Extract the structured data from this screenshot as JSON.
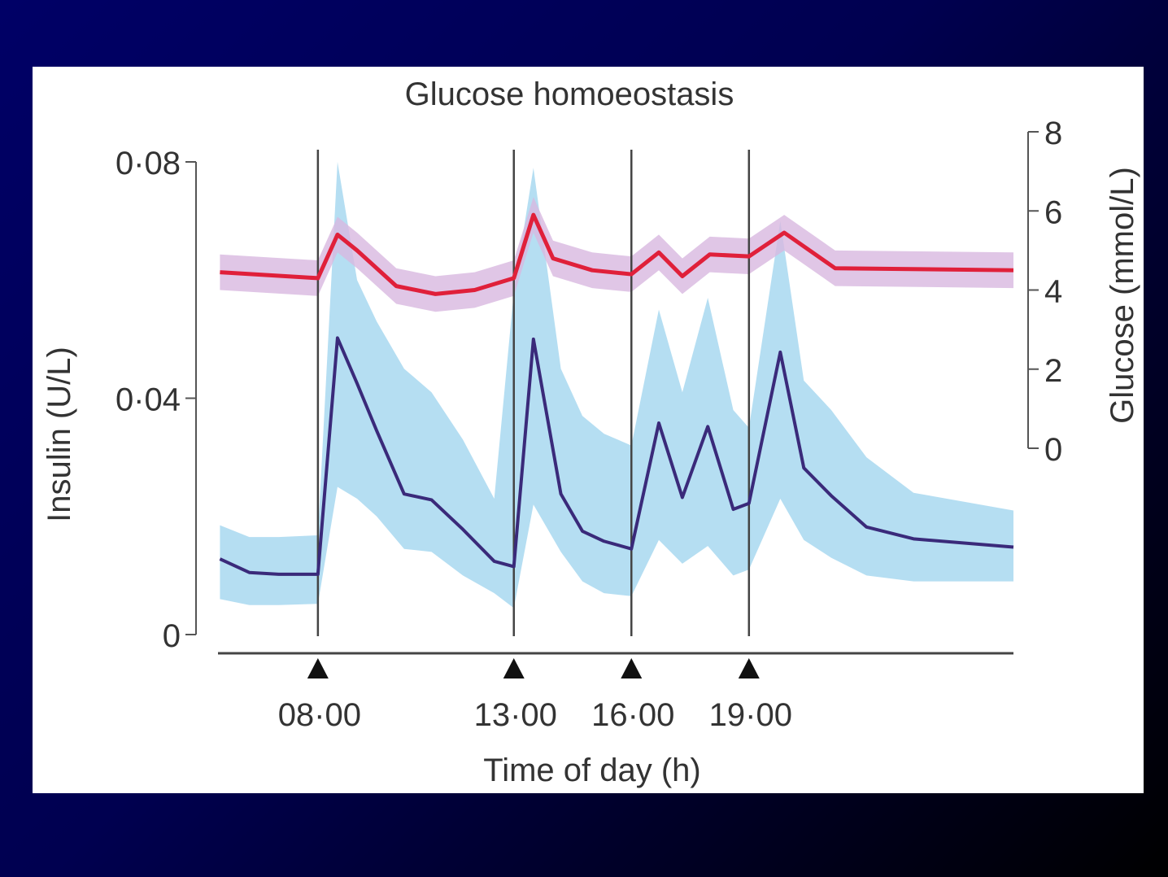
{
  "chart_data": {
    "type": "line",
    "title": "Glucose homoeostasis",
    "xlabel": "Time of day (h)",
    "ylabel_left": "Insulin (U/L)",
    "ylabel_right": "Glucose (mmol/L)",
    "x_ticks": [
      "08·00",
      "13·00",
      "16·00",
      "19·00"
    ],
    "x_tick_hours": [
      8,
      13,
      16,
      19
    ],
    "xlim": [
      5.45,
      25.75
    ],
    "ylim_left": [
      0,
      0.08
    ],
    "y_ticks_left": [
      {
        "value": 0,
        "label": "0"
      },
      {
        "value": 0.04,
        "label": "0·04"
      },
      {
        "value": 0.08,
        "label": "0·08"
      }
    ],
    "ylim_right": [
      0,
      8
    ],
    "y_ticks_right": [
      {
        "value": 0,
        "label": "0"
      },
      {
        "value": 2,
        "label": "2"
      },
      {
        "value": 4,
        "label": "4"
      },
      {
        "value": 6,
        "label": "6"
      },
      {
        "value": 8,
        "label": "8"
      }
    ],
    "meal_times": [
      8,
      13,
      16,
      19
    ],
    "series": [
      {
        "key": "insulin",
        "axis": "left",
        "color": "#3a2a7a",
        "band_color": "#a8d8f0",
        "x": [
          5.5,
          6.25,
          7,
          8,
          8.5,
          9,
          9.5,
          10.2,
          10.9,
          11.7,
          12.5,
          13,
          13.5,
          14.2,
          14.75,
          15.3,
          16,
          16.7,
          17.3,
          17.95,
          18.6,
          19,
          19.8,
          20.4,
          21.1,
          22,
          23.2,
          25.75
        ],
        "values": [
          0.0128,
          0.0105,
          0.0102,
          0.0102,
          0.0502,
          0.0425,
          0.0345,
          0.0238,
          0.0228,
          0.0178,
          0.0124,
          0.0115,
          0.05,
          0.0238,
          0.0175,
          0.0158,
          0.0145,
          0.0358,
          0.0232,
          0.0352,
          0.0212,
          0.0222,
          0.0478,
          0.0282,
          0.0235,
          0.0182,
          0.0162,
          0.0148
        ],
        "band_upper": [
          0.0185,
          0.0165,
          0.0165,
          0.0168,
          0.08,
          0.06,
          0.053,
          0.045,
          0.041,
          0.033,
          0.023,
          0.058,
          0.079,
          0.045,
          0.037,
          0.034,
          0.032,
          0.055,
          0.041,
          0.057,
          0.038,
          0.035,
          0.07,
          0.043,
          0.038,
          0.03,
          0.024,
          0.021
        ],
        "band_lower": [
          0.006,
          0.005,
          0.005,
          0.0052,
          0.025,
          0.023,
          0.02,
          0.0145,
          0.014,
          0.01,
          0.007,
          0.0045,
          0.022,
          0.014,
          0.009,
          0.007,
          0.0065,
          0.016,
          0.012,
          0.015,
          0.01,
          0.011,
          0.023,
          0.016,
          0.013,
          0.01,
          0.009,
          0.009
        ]
      },
      {
        "key": "glucose",
        "axis": "right",
        "color": "#e0203a",
        "band_color": "#d8b8e0",
        "x": [
          5.5,
          8,
          8.5,
          9,
          10,
          11,
          12,
          13,
          13.5,
          14,
          15,
          16,
          16.7,
          17.3,
          18,
          19,
          19.9,
          21.2,
          25.75
        ],
        "values": [
          4.45,
          4.3,
          5.4,
          5.0,
          4.1,
          3.9,
          4.0,
          4.3,
          5.9,
          4.8,
          4.5,
          4.4,
          4.95,
          4.35,
          4.9,
          4.85,
          5.45,
          4.55,
          4.5
        ],
        "band_halfwidth": 0.45
      }
    ]
  }
}
